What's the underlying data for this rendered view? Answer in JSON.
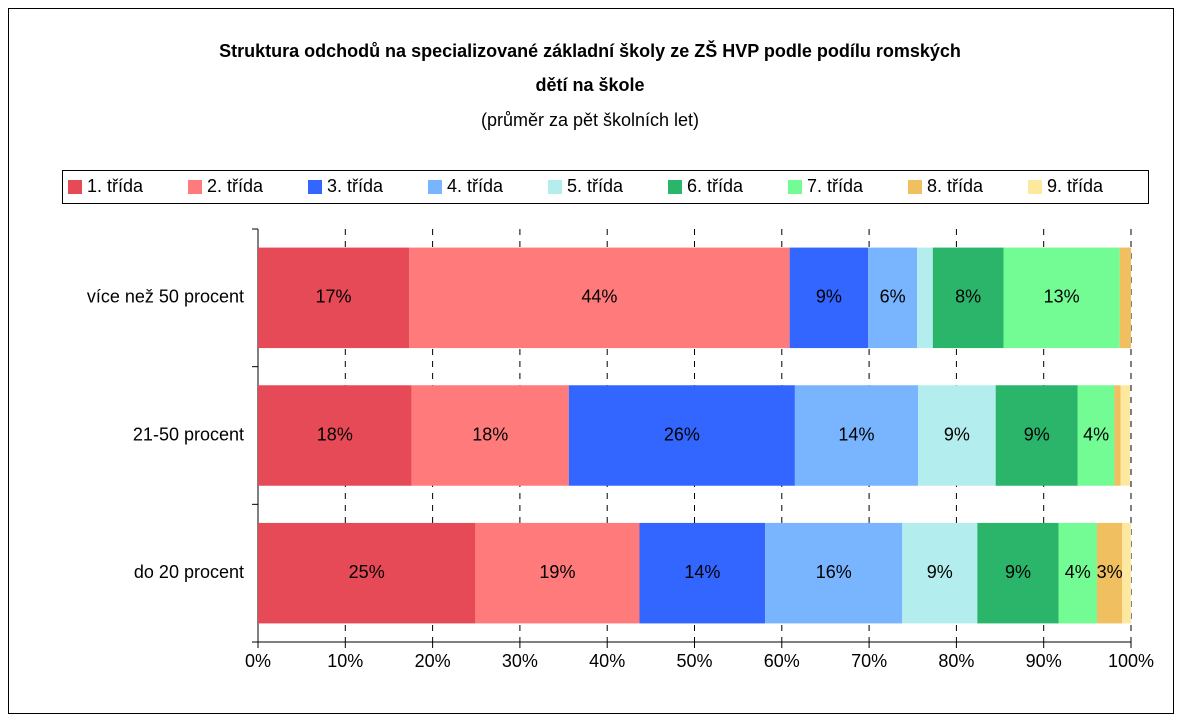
{
  "chart_data": {
    "type": "stacked-bar-horizontal",
    "title": [
      "Struktura odchodů na specializované základní školy ze ZŠ HVP podle podílu romských",
      "dětí na škole"
    ],
    "subtitle": "(průměr za pět školních let)",
    "categories": [
      "více než 50 procent",
      "21-50 procent",
      "do 20 procent"
    ],
    "series": [
      {
        "name": "1. třída",
        "color": "#e64a57",
        "values": [
          17.3,
          17.6,
          24.9
        ],
        "value_labels": [
          "17%",
          "18%",
          "25%"
        ]
      },
      {
        "name": "2. třída",
        "color": "#ff7b7b",
        "values": [
          43.6,
          18.0,
          18.8
        ],
        "value_labels": [
          "44%",
          "18%",
          "19%"
        ]
      },
      {
        "name": "3. třída",
        "color": "#3366ff",
        "values": [
          9.0,
          25.9,
          14.4
        ],
        "value_labels": [
          "9%",
          "26%",
          "14%"
        ]
      },
      {
        "name": "4. třída",
        "color": "#79b4ff",
        "values": [
          5.6,
          14.1,
          15.7
        ],
        "value_labels": [
          "6%",
          "14%",
          "16%"
        ]
      },
      {
        "name": "5. třída",
        "color": "#b3eded",
        "values": [
          1.8,
          8.9,
          8.6
        ],
        "value_labels": [
          null,
          "9%",
          "9%"
        ]
      },
      {
        "name": "6. třída",
        "color": "#2ab56b",
        "values": [
          8.1,
          9.4,
          9.3
        ],
        "value_labels": [
          "8%",
          "9%",
          "9%"
        ]
      },
      {
        "name": "7. třída",
        "color": "#73fb94",
        "values": [
          13.3,
          4.2,
          4.4
        ],
        "value_labels": [
          "13%",
          "4%",
          "4%"
        ]
      },
      {
        "name": "8. třída",
        "color": "#f0c060",
        "values": [
          1.3,
          0.7,
          2.9
        ],
        "value_labels": [
          null,
          null,
          "3%"
        ]
      },
      {
        "name": "9. třída",
        "color": "#fde8a0",
        "values": [
          0,
          1.1,
          1.0
        ],
        "value_labels": [
          null,
          null,
          null
        ]
      }
    ],
    "xlim": [
      0,
      100
    ],
    "xticks": [
      {
        "value": 0,
        "label": "0%"
      },
      {
        "value": 10,
        "label": "10%"
      },
      {
        "value": 20,
        "label": "20%"
      },
      {
        "value": 30,
        "label": "30%"
      },
      {
        "value": 40,
        "label": "40%"
      },
      {
        "value": 50,
        "label": "50%"
      },
      {
        "value": 60,
        "label": "60%"
      },
      {
        "value": 70,
        "label": "70%"
      },
      {
        "value": 80,
        "label": "80%"
      },
      {
        "value": 90,
        "label": "90%"
      },
      {
        "value": 100,
        "label": "100%"
      }
    ],
    "grid": true,
    "legend": "top"
  }
}
